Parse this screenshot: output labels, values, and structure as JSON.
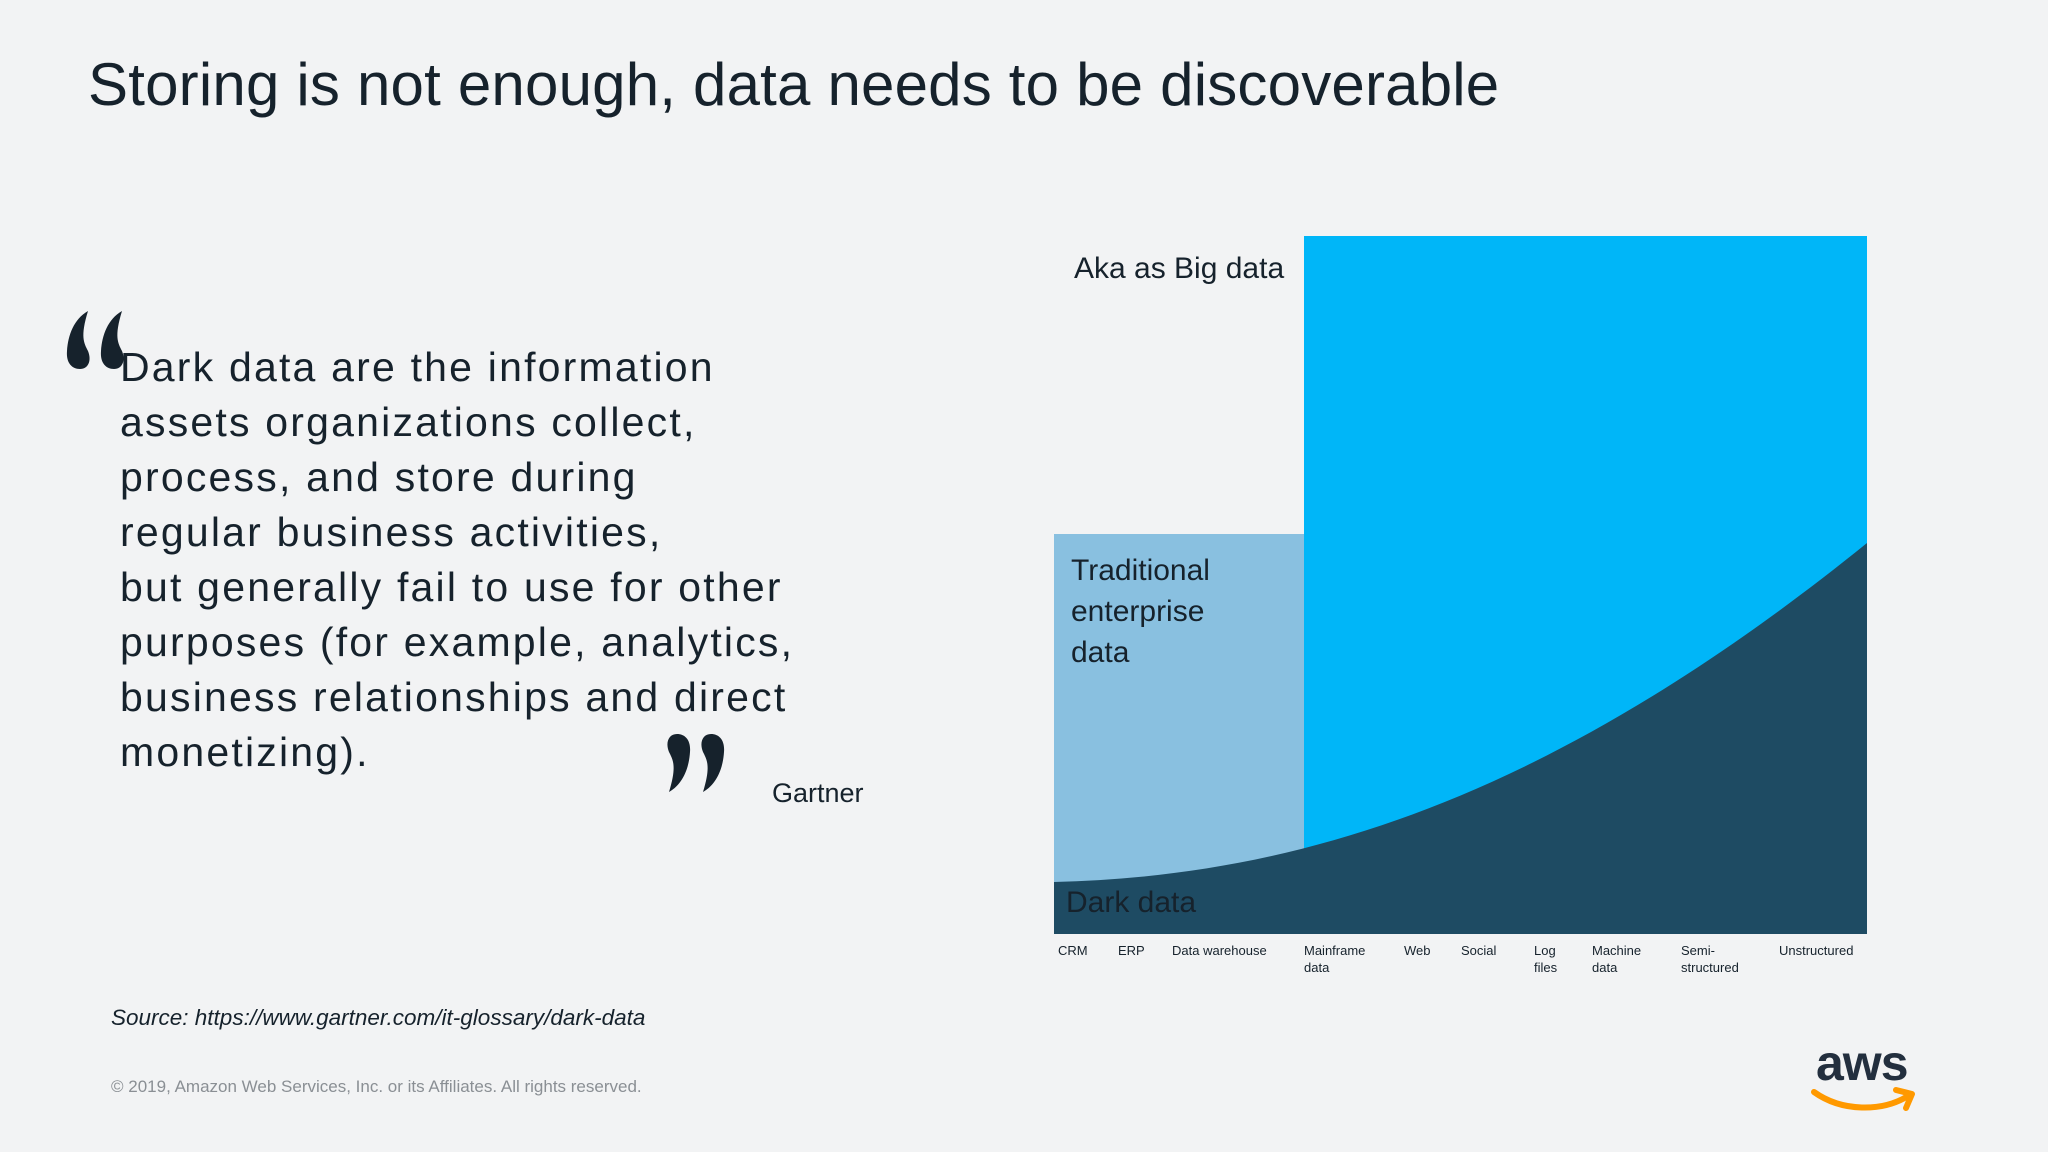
{
  "slide": {
    "title": "Storing is not enough, data needs to be discoverable"
  },
  "quote": {
    "open_mark": "“",
    "close_mark": "”",
    "lines": [
      "Dark data are the information",
      "assets organizations collect,",
      "process, and store during",
      "regular business activities,",
      "but generally fail to use for other",
      "purposes (for example, analytics,",
      "business relationships and direct",
      "monetizing)."
    ],
    "attribution": "Gartner"
  },
  "source": "Source: https://www.gartner.com/it-glossary/dark-data",
  "copyright": "© 2019, Amazon Web Services, Inc. or its Affiliates. All rights reserved.",
  "logo": {
    "text": "aws",
    "smile_color": "#ff9900",
    "icon": "aws-smile-arrow"
  },
  "diagram": {
    "regions": {
      "big_data": "Aka as Big data",
      "traditional": "Traditional\nenterprise\ndata",
      "dark": "Dark data"
    },
    "colors": {
      "traditional": "#89c0e0",
      "big_data": "#00b6f8",
      "dark": "#1e4b63"
    },
    "categories": [
      "CRM",
      "ERP",
      "Data warehouse",
      "Mainframe\ndata",
      "Web",
      "Social",
      "Log\nfiles",
      "Machine\ndata",
      "Semi-\nstructured",
      "Unstructured"
    ]
  }
}
